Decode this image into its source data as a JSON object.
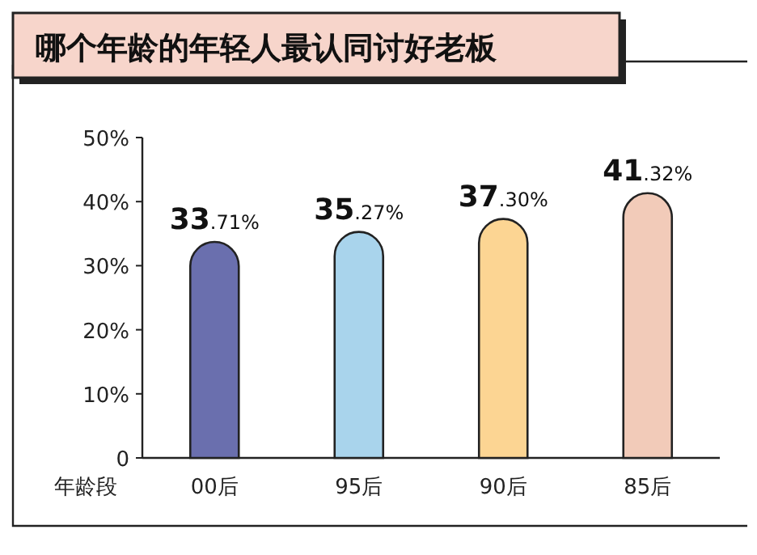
{
  "chart_data": {
    "type": "bar",
    "title": "哪个年龄的年轻人最认同讨好老板",
    "xlabel": "年龄段",
    "categories": [
      "00后",
      "95后",
      "90后",
      "85后"
    ],
    "values": [
      33.71,
      35.27,
      37.3,
      41.32
    ],
    "value_labels": [
      "33.71%",
      "35.27%",
      "37.30%",
      "41.32%"
    ],
    "colors": [
      "#6a6fae",
      "#a9d4ec",
      "#fcd593",
      "#f2cbb9"
    ],
    "ylim": [
      0,
      50
    ],
    "yticks": [
      {
        "value": 0,
        "label": "0"
      },
      {
        "value": 10,
        "label": "10%"
      },
      {
        "value": 20,
        "label": "20%"
      },
      {
        "value": 30,
        "label": "30%"
      },
      {
        "value": 40,
        "label": "40%"
      },
      {
        "value": 50,
        "label": "50%"
      }
    ]
  }
}
